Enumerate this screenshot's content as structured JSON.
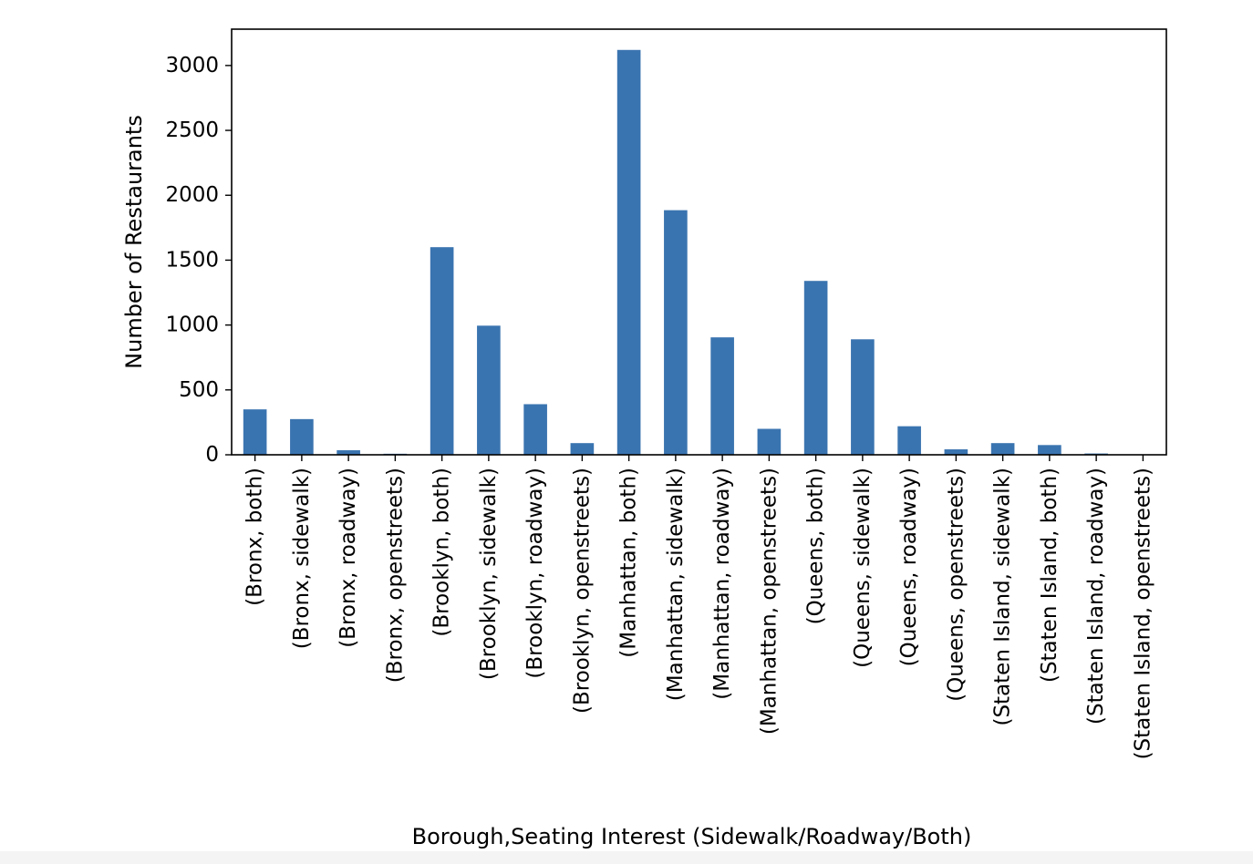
{
  "chart_data": {
    "type": "bar",
    "title": "",
    "xlabel": "Borough,Seating Interest (Sidewalk/Roadway/Both)",
    "ylabel": "Number of Restaurants",
    "ylim": [
      0,
      3280
    ],
    "yticks": [
      0,
      500,
      1000,
      1500,
      2000,
      2500,
      3000
    ],
    "bar_color": "#3a74b0",
    "grid": false,
    "categories": [
      "(Bronx, both)",
      "(Bronx, sidewalk)",
      "(Bronx, roadway)",
      "(Bronx, openstreets)",
      "(Brooklyn, both)",
      "(Brooklyn, sidewalk)",
      "(Brooklyn, roadway)",
      "(Brooklyn, openstreets)",
      "(Manhattan, both)",
      "(Manhattan, sidewalk)",
      "(Manhattan, roadway)",
      "(Manhattan, openstreets)",
      "(Queens, both)",
      "(Queens, sidewalk)",
      "(Queens, roadway)",
      "(Queens, openstreets)",
      "(Staten Island, sidewalk)",
      "(Staten Island, both)",
      "(Staten Island, roadway)",
      "(Staten Island, openstreets)"
    ],
    "values": [
      350,
      275,
      35,
      8,
      1600,
      995,
      390,
      90,
      3120,
      1885,
      905,
      200,
      1340,
      890,
      220,
      42,
      90,
      75,
      10,
      2
    ]
  }
}
